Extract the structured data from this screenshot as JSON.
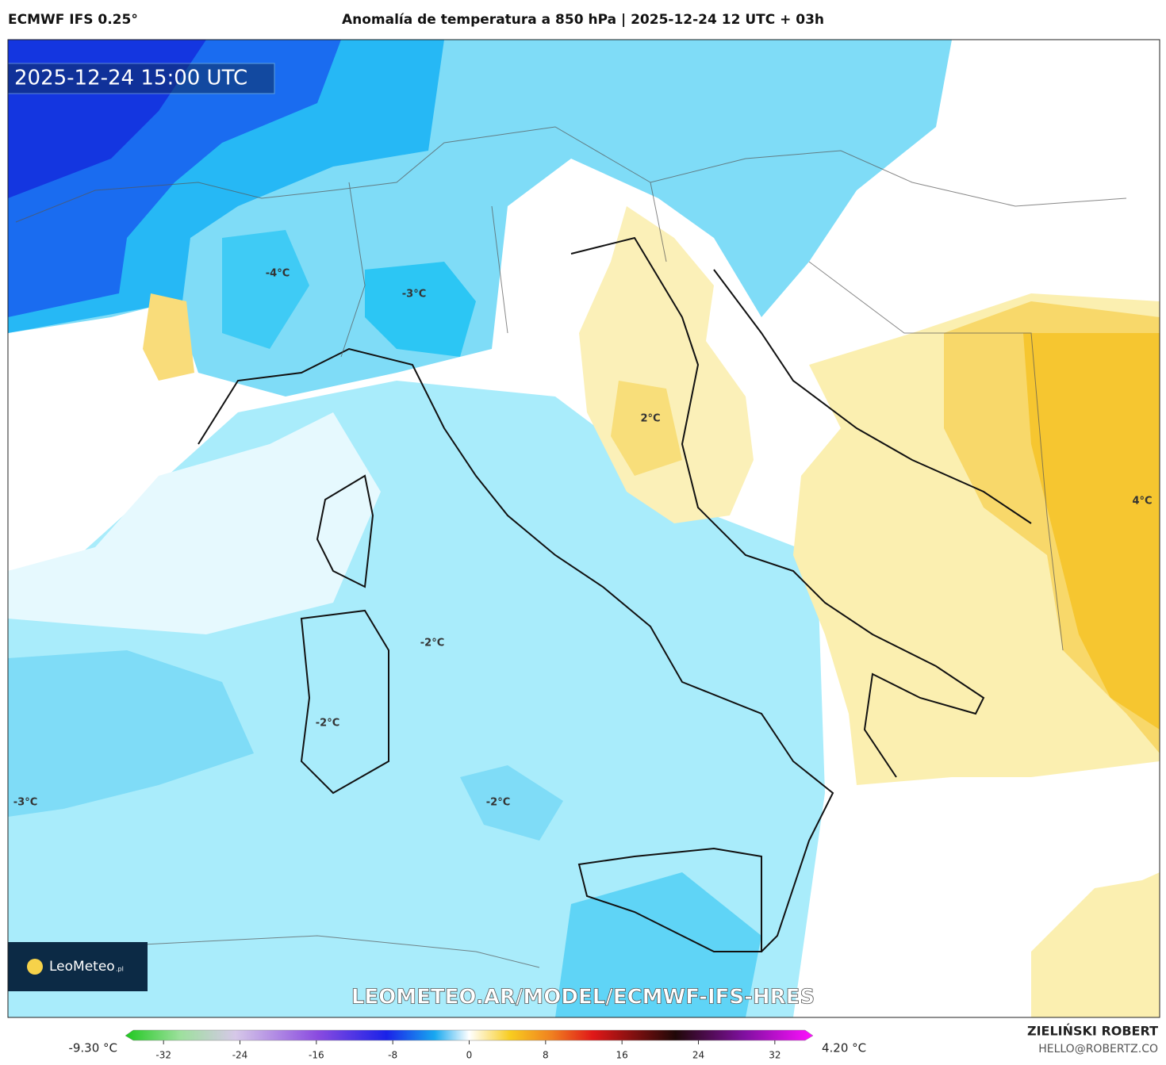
{
  "header": {
    "model": "ECMWF IFS 0.25°",
    "title": "Anomalía de temperatura a 850 hPa | 2025-12-24 12 UTC + 03h"
  },
  "map": {
    "timestamp": "2025-12-24 15:00 UTC",
    "contour_labels": [
      "-4°C",
      "-3°C",
      "2°C",
      "-2°C",
      "-2°C",
      "-3°C",
      "-2°C",
      "4°C"
    ],
    "logo": {
      "name": "LeoMeteo",
      "suffix": ".pl"
    },
    "watermark": "LEOMETEO.AR/MODEL/ECMWF-IFS-HRES"
  },
  "colorbar": {
    "min_label": "-9.30 °C",
    "max_label": "4.20 °C",
    "lim": [
      -36,
      36
    ],
    "ticks": [
      -32,
      -24,
      -16,
      -8,
      0,
      8,
      16,
      24,
      32
    ]
  },
  "credit": {
    "author": "ZIELIŃSKI ROBERT",
    "email": "HELLO@ROBERTZ.CO"
  }
}
